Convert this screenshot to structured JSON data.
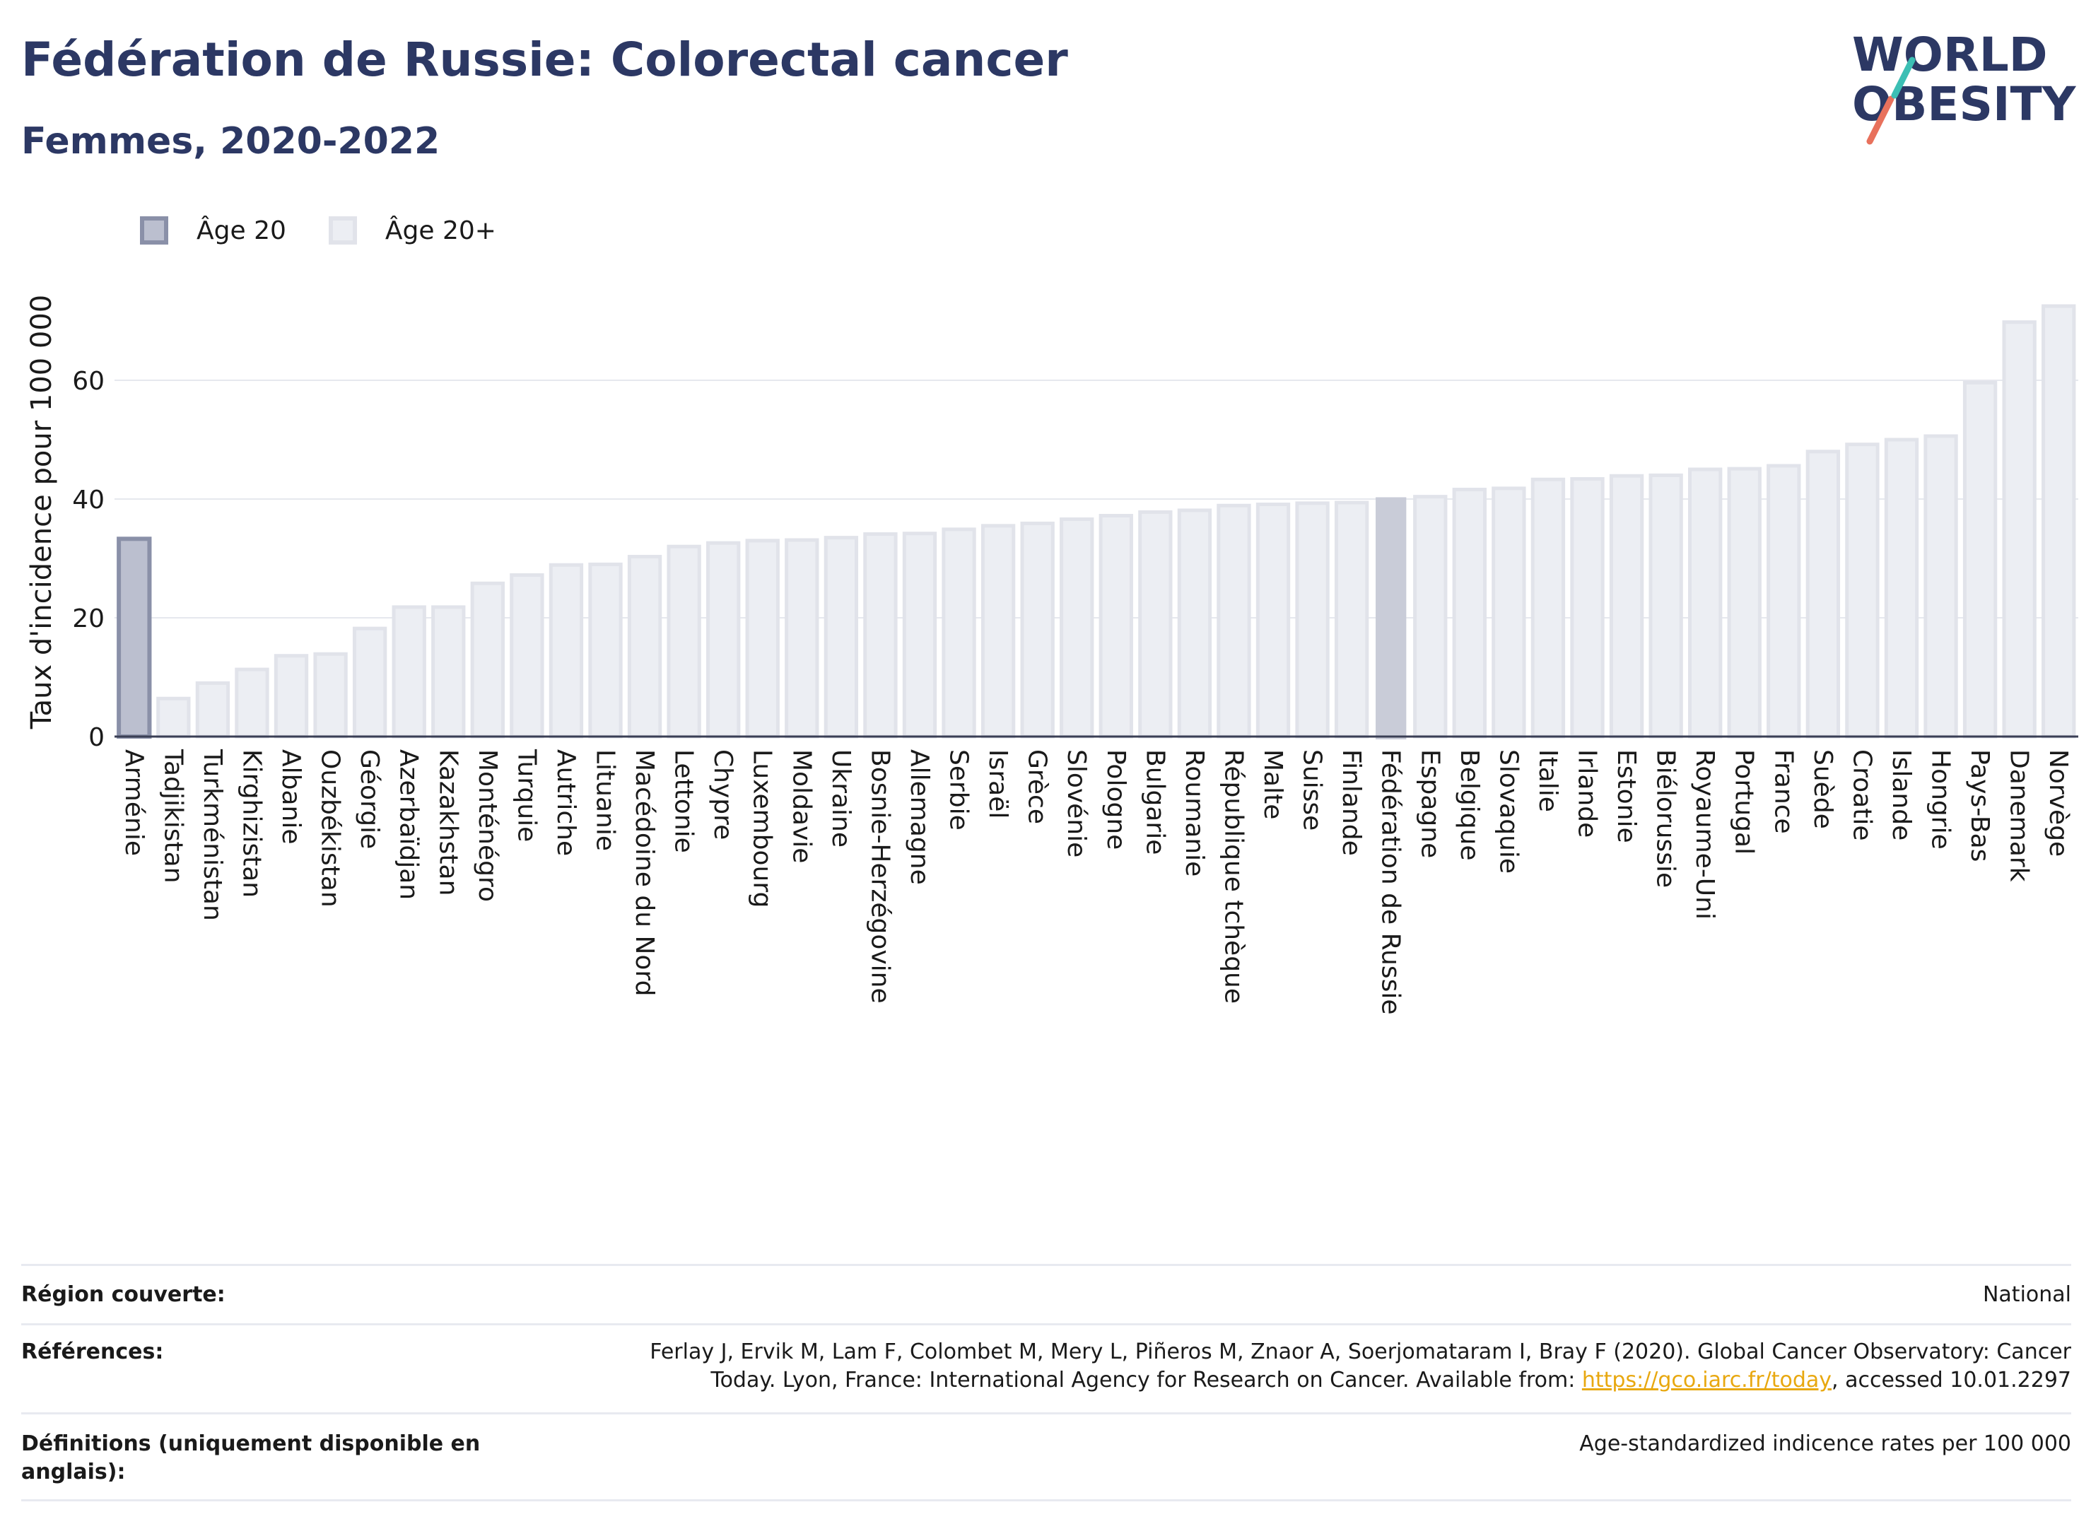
{
  "header": {
    "title": "Fédération de Russie: Colorectal cancer",
    "subtitle": "Femmes, 2020-2022"
  },
  "logo": {
    "line1": "WORLD",
    "line2": "OBESITY"
  },
  "legend": [
    {
      "label": "Âge 20",
      "color": "#bbbfcf",
      "border": "#8a90a8"
    },
    {
      "label": "Âge 20+",
      "color": "#eceef3",
      "border": "#e1e3ea"
    }
  ],
  "chart_data": {
    "type": "bar",
    "ylabel": "Taux d'incidence pour 100 000",
    "ylim": [
      0,
      75
    ],
    "yticks": [
      0,
      20,
      40,
      60
    ],
    "grid": true,
    "highlight_color": "#c9ccd8",
    "categories": [
      "Arménie",
      "Tadjikistan",
      "Turkménistan",
      "Kirghizistan",
      "Albanie",
      "Ouzbékistan",
      "Géorgie",
      "Azerbaïdjan",
      "Kazakhstan",
      "Monténégro",
      "Turquie",
      "Autriche",
      "Lituanie",
      "Macédoine du Nord",
      "Lettonie",
      "Chypre",
      "Luxembourg",
      "Moldavie",
      "Ukraine",
      "Bosnie-Herzégovine",
      "Allemagne",
      "Serbie",
      "Israël",
      "Grèce",
      "Slovénie",
      "Pologne",
      "Bulgarie",
      "Roumanie",
      "République tchèque",
      "Malte",
      "Suisse",
      "Finlande",
      "Fédération de Russie",
      "Espagne",
      "Belgique",
      "Slovaquie",
      "Italie",
      "Irlande",
      "Estonie",
      "Biélorussie",
      "Royaume-Uni",
      "Portugal",
      "France",
      "Suède",
      "Croatie",
      "Islande",
      "Hongrie",
      "Pays-Bas",
      "Danemark",
      "Norvège"
    ],
    "values": [
      33.3,
      6.4,
      9.0,
      11.3,
      13.6,
      13.9,
      18.2,
      21.8,
      21.8,
      25.8,
      27.2,
      28.9,
      29.0,
      30.3,
      32.0,
      32.6,
      33.0,
      33.1,
      33.5,
      34.1,
      34.2,
      34.9,
      35.5,
      35.9,
      36.6,
      37.2,
      37.8,
      38.1,
      38.9,
      39.1,
      39.3,
      39.4,
      40.3,
      40.4,
      41.6,
      41.8,
      43.3,
      43.4,
      43.9,
      44.0,
      45.0,
      45.1,
      45.6,
      48.0,
      49.2,
      50.0,
      50.6,
      59.6,
      69.8,
      72.5
    ],
    "series_group": [
      "Âge 20",
      "Âge 20+",
      "Âge 20+",
      "Âge 20+",
      "Âge 20+",
      "Âge 20+",
      "Âge 20+",
      "Âge 20+",
      "Âge 20+",
      "Âge 20+",
      "Âge 20+",
      "Âge 20+",
      "Âge 20+",
      "Âge 20+",
      "Âge 20+",
      "Âge 20+",
      "Âge 20+",
      "Âge 20+",
      "Âge 20+",
      "Âge 20+",
      "Âge 20+",
      "Âge 20+",
      "Âge 20+",
      "Âge 20+",
      "Âge 20+",
      "Âge 20+",
      "Âge 20+",
      "Âge 20+",
      "Âge 20+",
      "Âge 20+",
      "Âge 20+",
      "Âge 20+",
      "Âge 20+",
      "Âge 20+",
      "Âge 20+",
      "Âge 20+",
      "Âge 20+",
      "Âge 20+",
      "Âge 20+",
      "Âge 20+",
      "Âge 20+",
      "Âge 20+",
      "Âge 20+",
      "Âge 20+",
      "Âge 20+",
      "Âge 20+",
      "Âge 20+",
      "Âge 20+",
      "Âge 20+",
      "Âge 20+"
    ],
    "highlight": "Fédération de Russie"
  },
  "footer": {
    "region_label": "Région couverte:",
    "region_value": "National",
    "references_label": "Références:",
    "references_line1": "Ferlay J, Ervik M, Lam F, Colombet M, Mery L, Piñeros M, Znaor A, Soerjomataram I, Bray F (2020). Global Cancer Observatory: Cancer",
    "references_line2_pre": "Today. Lyon, France: International Agency for Research on Cancer. Available from: ",
    "references_link": "https://gco.iarc.fr/today",
    "references_line2_post": ", accessed 10.01.2297",
    "definitions_label_1": "Définitions (uniquement disponible en",
    "definitions_label_2": "anglais):",
    "definitions_value": "Age-standardized indicence rates per 100 000"
  }
}
